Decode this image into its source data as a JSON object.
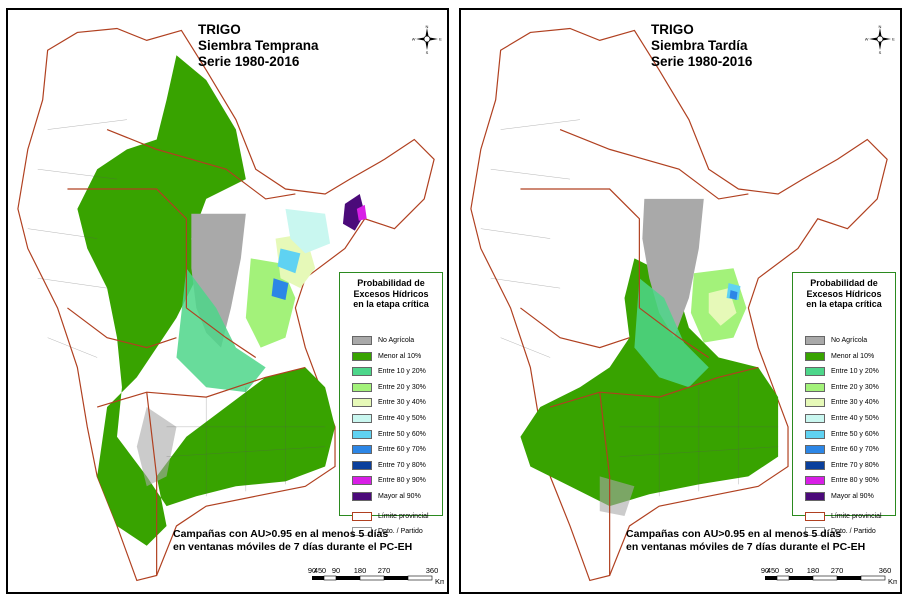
{
  "maps": [
    {
      "title_lines": [
        "TRIGO",
        "Siembra Temprana",
        "Serie 1980-2016"
      ]
    },
    {
      "title_lines": [
        "TRIGO",
        "Siembra Tardía",
        "Serie 1980-2016"
      ]
    }
  ],
  "legend": {
    "title_lines": [
      "Probabilidad de",
      "Excesos Hídricos",
      "en la etapa crítica"
    ],
    "items": [
      {
        "label": "No Agrícola",
        "color": "#a9a9a9"
      },
      {
        "label": "Menor al 10%",
        "color": "#38a300"
      },
      {
        "label": "Entre 10 y 20%",
        "color": "#4dd68a"
      },
      {
        "label": "Entre 20 y 30%",
        "color": "#a3f27a"
      },
      {
        "label": "Entre 30 y 40%",
        "color": "#e6f9b8"
      },
      {
        "label": "Entre 40 y 50%",
        "color": "#c9f7f0"
      },
      {
        "label": "Entre 50 y 60%",
        "color": "#5fd2f2"
      },
      {
        "label": "Entre 60 y 70%",
        "color": "#2c86e6"
      },
      {
        "label": "Entre 70 y 80%",
        "color": "#0a3f9c"
      },
      {
        "label": "Entre 80 y 90%",
        "color": "#d81ee6"
      },
      {
        "label": "Mayor al 90%",
        "color": "#4b0a7a"
      }
    ],
    "line_items": [
      {
        "label": "Límite provincial"
      },
      {
        "label": "Dpto. / Partido"
      }
    ]
  },
  "caption_lines": [
    "Campañas con AU>0.95 en al menos 5 días",
    "en ventanas móviles de 7 días durante el PC-EH"
  ],
  "scale": {
    "ticks": [
      "90",
      "45",
      "0",
      "90",
      "180",
      "270",
      "360"
    ],
    "unit": "Km"
  },
  "compass": {
    "n": "N",
    "s": "S",
    "e": "E",
    "w": "W"
  }
}
